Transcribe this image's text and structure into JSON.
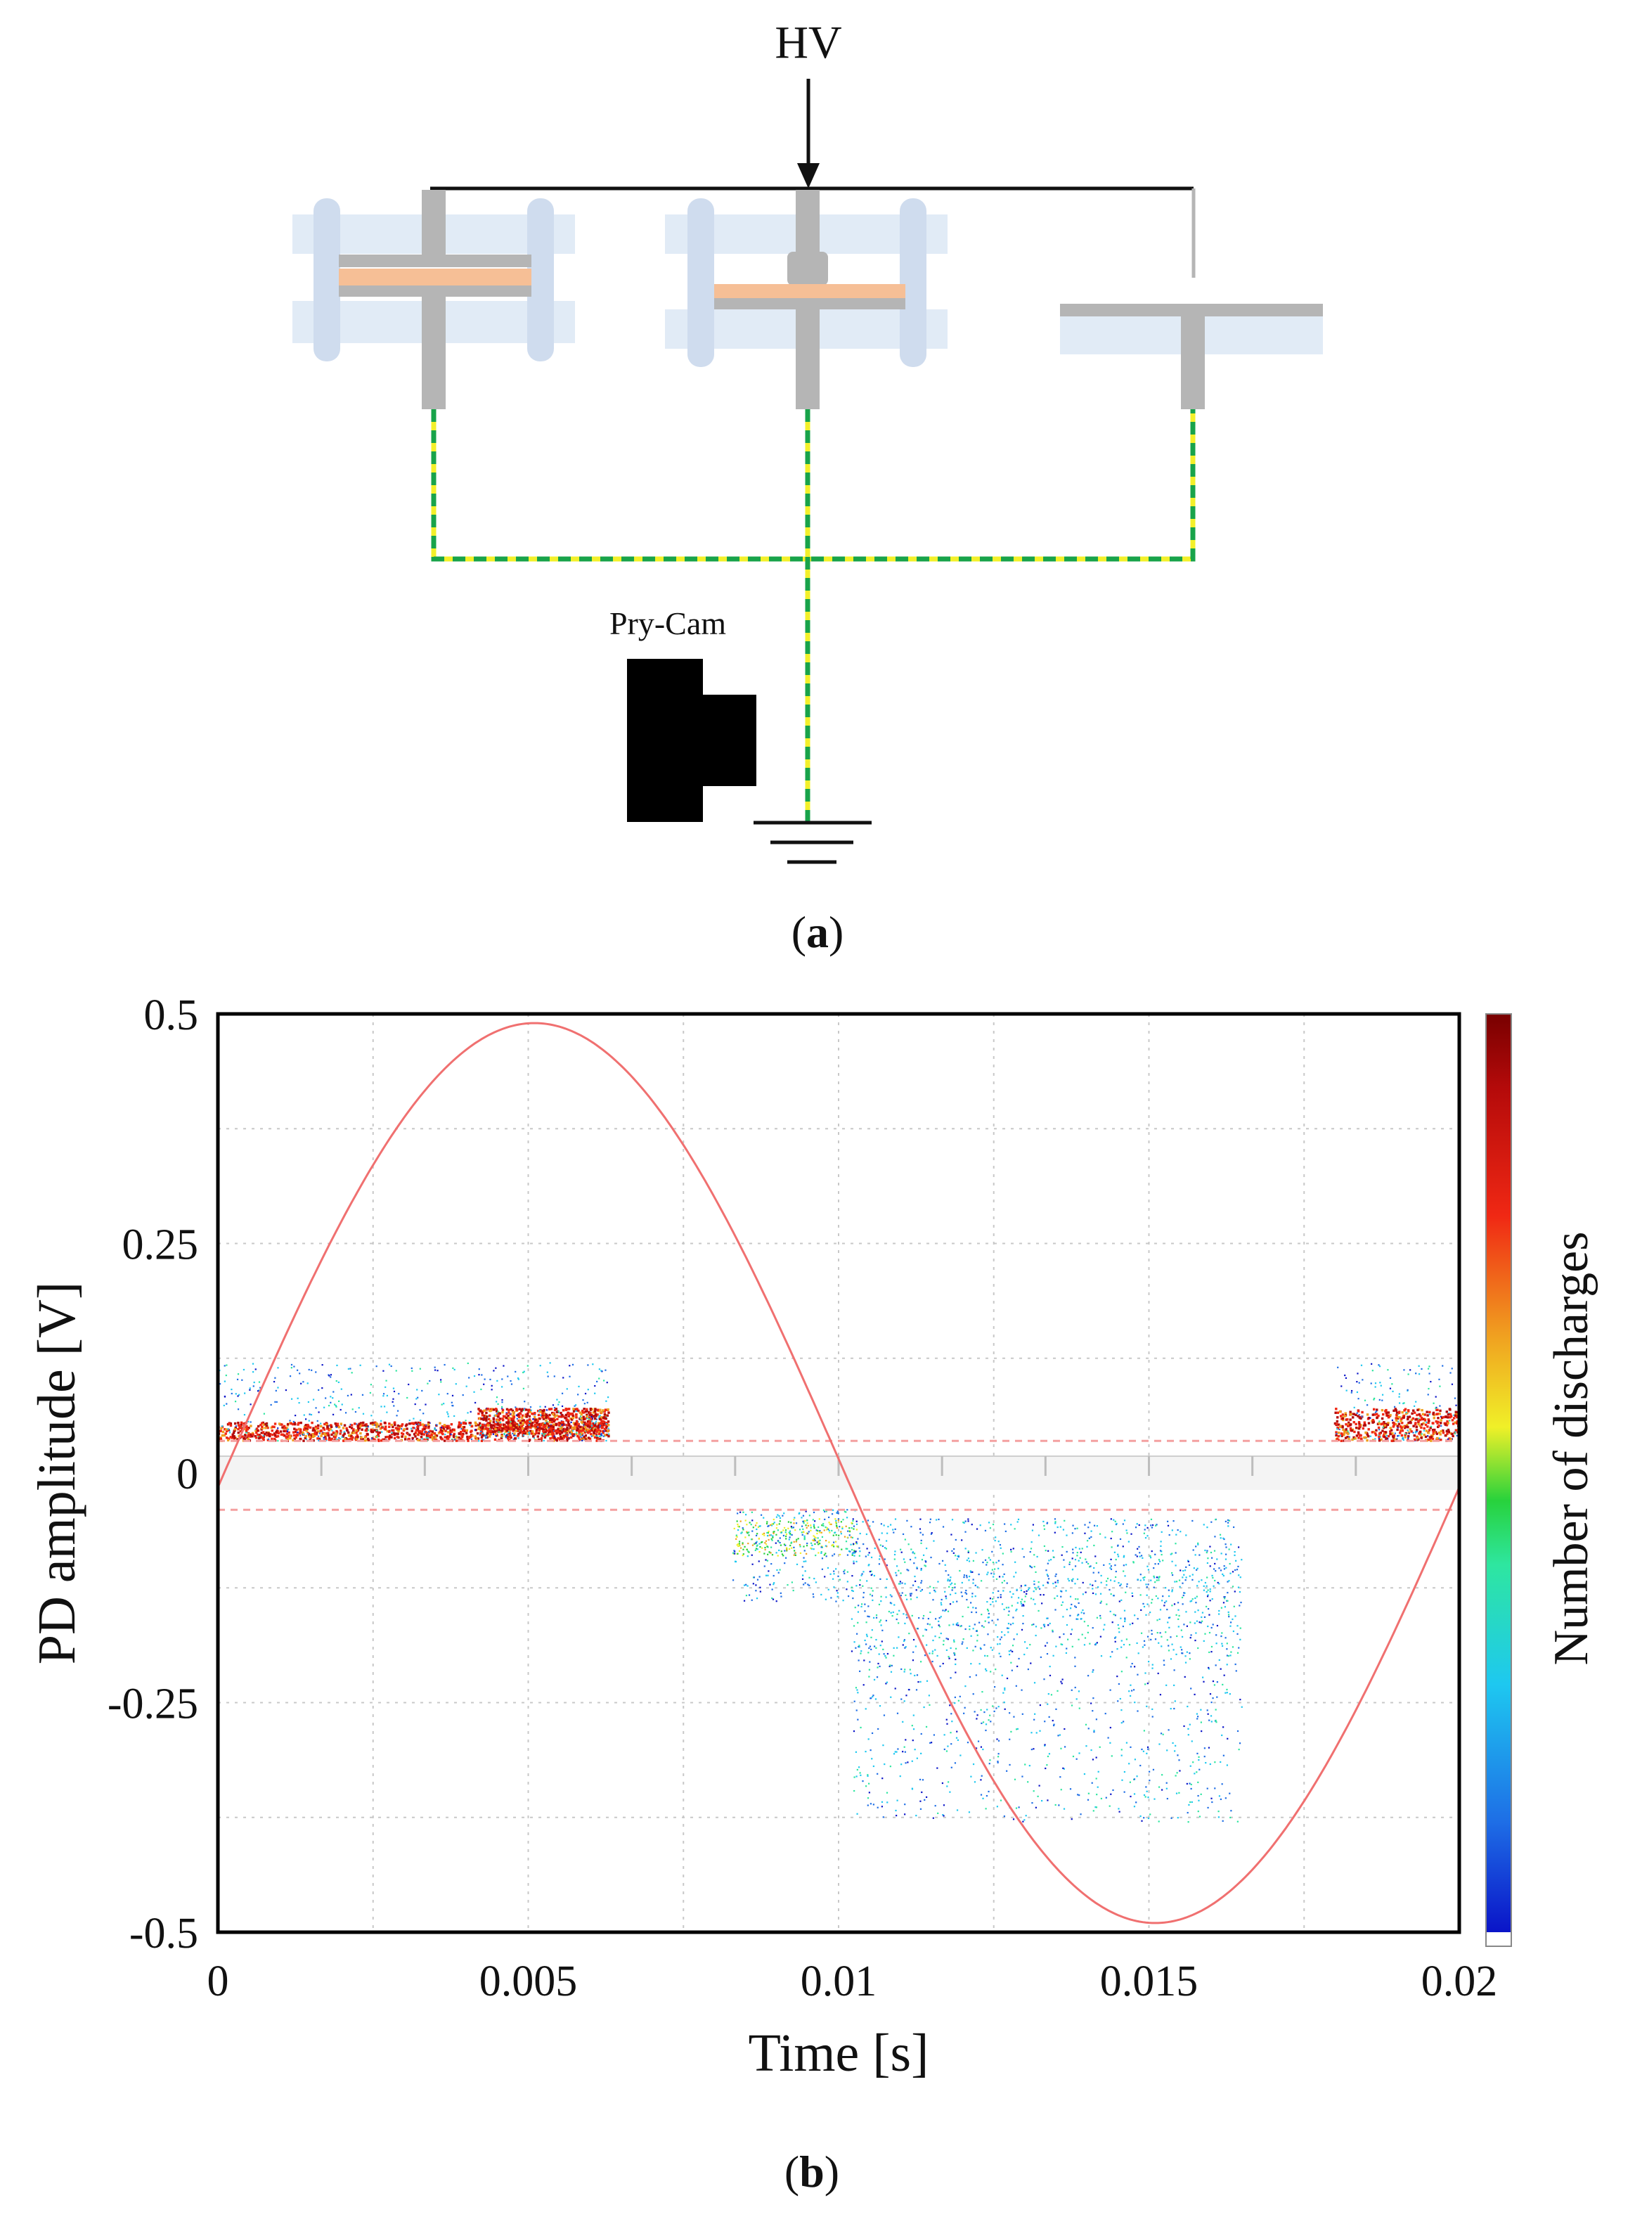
{
  "panel_a": {
    "hv_label": "HV",
    "camera_label": "Pry-Cam",
    "caption_open": "(",
    "caption_letter": "a",
    "caption_close": ")"
  },
  "panel_b": {
    "caption_open": "(",
    "caption_letter": "b",
    "caption_close": ")"
  },
  "colors": {
    "ground_wire_dash": "#18a34a",
    "ground_wire_base": "#f3f02a",
    "electrode_gray": "#b5b5b5",
    "dielectric_orange": "#f6bf96",
    "insulator_blue": "#dce8f4",
    "sine_red": "#f07070",
    "threshold_red": "#f4a0a0"
  },
  "chart_data": {
    "type": "scatter",
    "title": "",
    "xlabel": "Time [s]",
    "ylabel": "PD amplitude [V]",
    "colorbar_label": "Number of discharges",
    "xlim": [
      0,
      0.02
    ],
    "ylim": [
      -0.5,
      0.5
    ],
    "x_ticks": [
      "0",
      "0.005",
      "0.01",
      "0.015",
      "0.02"
    ],
    "y_ticks": [
      "0.5",
      "0.25",
      "0",
      "-0.25",
      "-0.5"
    ],
    "x_tick_values": [
      0,
      0.005,
      0.01,
      0.015,
      0.02
    ],
    "y_tick_values": [
      0.5,
      0.25,
      0,
      -0.25,
      -0.5
    ],
    "grid": true,
    "reference_sine": {
      "amplitude": 0.49,
      "period": 0.02,
      "phase_shift": 0.0001,
      "color": "#f07070"
    },
    "thresholds": [
      0.035,
      -0.04
    ],
    "clusters": [
      {
        "name": "positive-cluster-early",
        "x_range": [
          0.0,
          0.0063
        ],
        "y_range": [
          0.035,
          0.12
        ],
        "dense_band": [
          0.035,
          0.055
        ],
        "density": "high"
      },
      {
        "name": "positive-cluster-peak",
        "x_range": [
          0.0042,
          0.0063
        ],
        "y_range": [
          0.04,
          0.08
        ],
        "dense_band": [
          0.045,
          0.07
        ],
        "density": "high"
      },
      {
        "name": "negative-cluster-onset",
        "x_range": [
          0.0083,
          0.0103
        ],
        "y_range": [
          -0.14,
          -0.04
        ],
        "dense_band": [
          -0.09,
          -0.05
        ],
        "density": "medium"
      },
      {
        "name": "negative-cluster-spread",
        "x_range": [
          0.0102,
          0.0165
        ],
        "y_range": [
          -0.38,
          -0.05
        ],
        "dense_band": [
          -0.2,
          -0.08
        ],
        "density": "low"
      },
      {
        "name": "positive-cluster-late",
        "x_range": [
          0.018,
          0.02
        ],
        "y_range": [
          0.035,
          0.12
        ],
        "dense_band": [
          0.035,
          0.07
        ],
        "density": "high"
      }
    ],
    "colormap": [
      "#0a14c8",
      "#1e6ee6",
      "#1ec8f0",
      "#2ee6a0",
      "#28d23c",
      "#f0f028",
      "#f0a020",
      "#f02814",
      "#b40a0a",
      "#780000"
    ]
  }
}
